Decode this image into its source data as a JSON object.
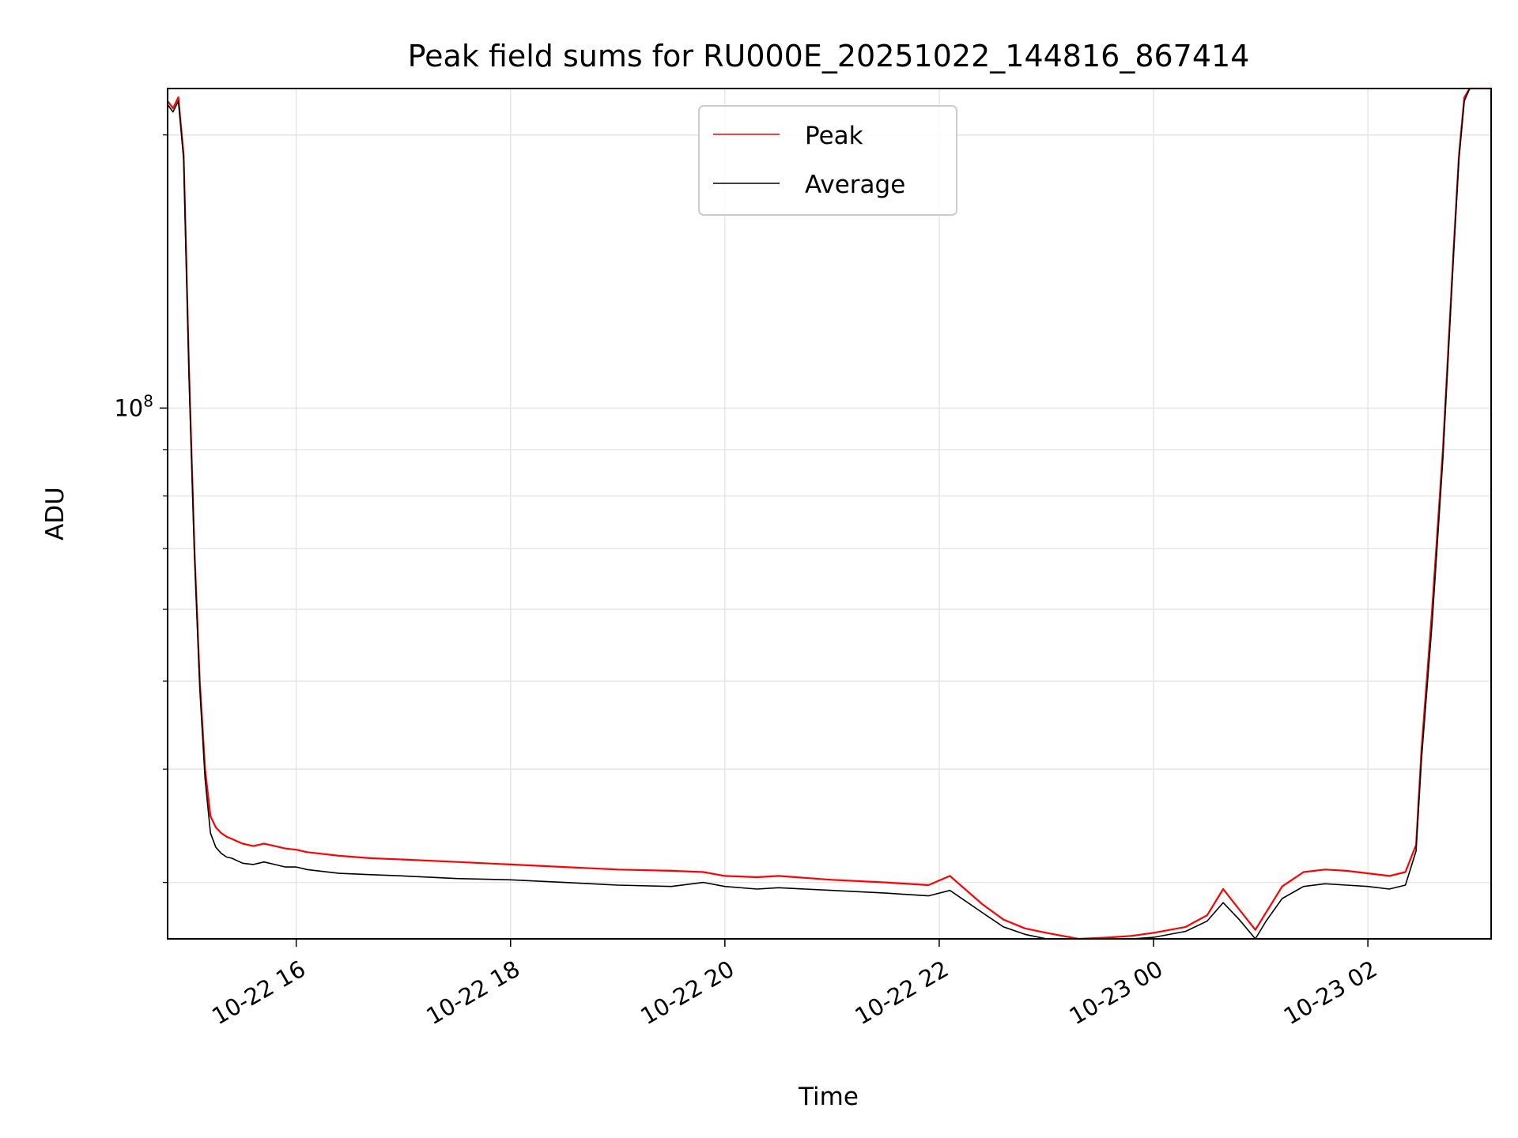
{
  "chart_data": {
    "type": "line",
    "title": "Peak field sums for RU000E_20251022_144816_867414",
    "xlabel": "Time",
    "ylabel": "ADU",
    "yscale": "log",
    "xlim_hours": [
      14.8,
      27.15
    ],
    "ylim": [
      26000000,
      225000000
    ],
    "grid": true,
    "legend_position": "top-center",
    "x_ticks": [
      {
        "hours": 16,
        "label": "10-22 16"
      },
      {
        "hours": 18,
        "label": "10-22 18"
      },
      {
        "hours": 20,
        "label": "10-22 20"
      },
      {
        "hours": 22,
        "label": "10-22 22"
      },
      {
        "hours": 24,
        "label": "10-23 00"
      },
      {
        "hours": 26,
        "label": "10-23 02"
      }
    ],
    "y_major_ticks": [
      {
        "value": 100000000,
        "mantissa": "10",
        "exponent": "8"
      }
    ],
    "y_minor_ticks": [
      30000000,
      40000000,
      50000000,
      60000000,
      70000000,
      80000000,
      90000000,
      200000000
    ],
    "series": [
      {
        "name": "Peak",
        "color": "#ff0000",
        "x_hours": [
          14.8,
          14.85,
          14.9,
          14.95,
          15.0,
          15.05,
          15.1,
          15.15,
          15.2,
          15.25,
          15.3,
          15.35,
          15.4,
          15.45,
          15.5,
          15.6,
          15.7,
          15.8,
          15.9,
          16.0,
          16.1,
          16.2,
          16.4,
          16.7,
          17.0,
          17.5,
          18.0,
          18.5,
          19.0,
          19.5,
          19.8,
          20.0,
          20.3,
          20.5,
          21.0,
          21.5,
          21.9,
          22.1,
          22.4,
          22.6,
          22.8,
          23.0,
          23.3,
          23.6,
          23.8,
          24.0,
          24.3,
          24.5,
          24.65,
          24.8,
          24.95,
          25.05,
          25.2,
          25.4,
          25.6,
          25.8,
          26.0,
          26.2,
          26.35,
          26.45,
          26.5,
          26.6,
          26.7,
          26.8,
          26.85,
          26.9,
          26.95,
          27.0,
          27.05,
          27.1,
          27.15
        ],
        "y_values": [
          218000000,
          214000000,
          220000000,
          190000000,
          110000000,
          70000000,
          50000000,
          40000000,
          35500000,
          34500000,
          34000000,
          33700000,
          33500000,
          33300000,
          33100000,
          32900000,
          33100000,
          32900000,
          32700000,
          32600000,
          32400000,
          32300000,
          32100000,
          31900000,
          31800000,
          31600000,
          31400000,
          31200000,
          31000000,
          30900000,
          30800000,
          30500000,
          30400000,
          30500000,
          30200000,
          30000000,
          29800000,
          30500000,
          28400000,
          27300000,
          26700000,
          26400000,
          26000000,
          26100000,
          26200000,
          26400000,
          26800000,
          27600000,
          29500000,
          28000000,
          26600000,
          27800000,
          29700000,
          30800000,
          31000000,
          30900000,
          30700000,
          30500000,
          30800000,
          33000000,
          42000000,
          60000000,
          90000000,
          150000000,
          190000000,
          220000000,
          225000000,
          225000000,
          225000000,
          225000000,
          225000000
        ]
      },
      {
        "name": "Average",
        "color": "#000000",
        "x_hours": [
          14.8,
          14.85,
          14.9,
          14.95,
          15.0,
          15.05,
          15.1,
          15.15,
          15.2,
          15.25,
          15.3,
          15.35,
          15.4,
          15.45,
          15.5,
          15.6,
          15.7,
          15.8,
          15.9,
          16.0,
          16.1,
          16.2,
          16.4,
          16.7,
          17.0,
          17.5,
          18.0,
          18.5,
          19.0,
          19.5,
          19.8,
          20.0,
          20.3,
          20.5,
          21.0,
          21.5,
          21.9,
          22.1,
          22.4,
          22.6,
          22.8,
          23.0,
          23.3,
          23.6,
          23.8,
          24.0,
          24.3,
          24.5,
          24.65,
          24.8,
          24.95,
          25.05,
          25.2,
          25.4,
          25.6,
          25.8,
          26.0,
          26.2,
          26.35,
          26.45,
          26.5,
          26.6,
          26.7,
          26.8,
          26.85,
          26.9,
          26.95,
          27.0,
          27.05,
          27.1,
          27.15
        ],
        "y_values": [
          216000000,
          212000000,
          218000000,
          188000000,
          108000000,
          69000000,
          49000000,
          39000000,
          34000000,
          32800000,
          32300000,
          32000000,
          31900000,
          31700000,
          31500000,
          31400000,
          31600000,
          31400000,
          31200000,
          31200000,
          31000000,
          30900000,
          30700000,
          30600000,
          30500000,
          30300000,
          30200000,
          30000000,
          29800000,
          29700000,
          30000000,
          29700000,
          29500000,
          29600000,
          29400000,
          29200000,
          29000000,
          29400000,
          27800000,
          26800000,
          26300000,
          26000000,
          25700000,
          25800000,
          25900000,
          26100000,
          26500000,
          27200000,
          28500000,
          27300000,
          26000000,
          27200000,
          28800000,
          29700000,
          29900000,
          29800000,
          29700000,
          29500000,
          29800000,
          32500000,
          41000000,
          58000000,
          88000000,
          148000000,
          188000000,
          218000000,
          225000000,
          225000000,
          225000000,
          225000000,
          225000000
        ]
      }
    ]
  }
}
